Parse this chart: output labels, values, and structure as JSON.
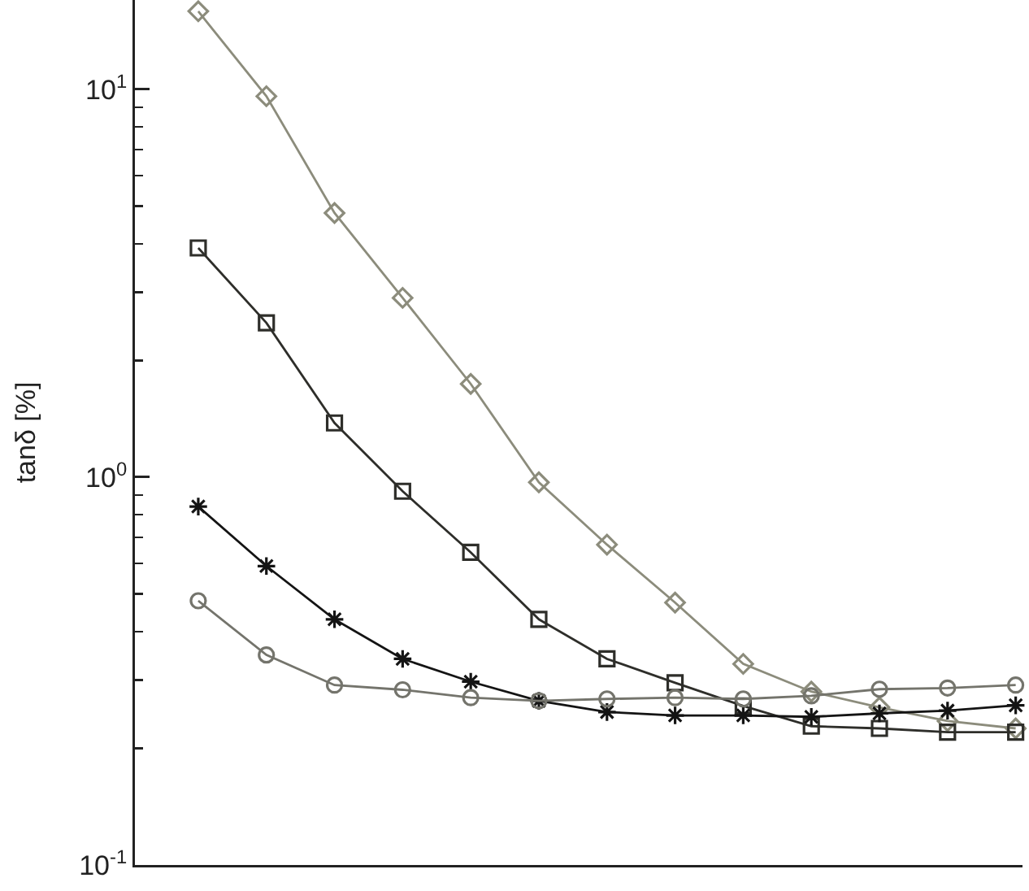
{
  "chart_data": {
    "type": "line",
    "ylabel": "tanδ [%]",
    "categories": [
      null,
      null,
      null,
      null,
      null,
      null,
      null,
      null,
      null,
      null,
      null,
      null,
      null
    ],
    "series": [
      {
        "color": "#8c8c7c",
        "marker": "diamond",
        "values": [
          15.9,
          9.6,
          4.8,
          2.9,
          1.74,
          0.97,
          0.67,
          0.475,
          0.33,
          0.28,
          0.255,
          0.235,
          0.225
        ]
      },
      {
        "color": "#2e2e2a",
        "marker": "square",
        "values": [
          3.9,
          2.5,
          1.38,
          0.92,
          0.64,
          0.43,
          0.34,
          0.295,
          0.257,
          0.228,
          0.225,
          0.22,
          0.22
        ]
      },
      {
        "color": "#141414",
        "marker": "cross",
        "values": [
          0.84,
          0.59,
          0.43,
          0.34,
          0.297,
          0.265,
          0.248,
          0.243,
          0.243,
          0.241,
          0.246,
          0.25,
          0.258
        ]
      },
      {
        "color": "#74746c",
        "marker": "circle",
        "values": [
          0.48,
          0.348,
          0.291,
          0.283,
          0.27,
          0.265,
          0.268,
          0.27,
          0.268,
          0.273,
          0.284,
          0.286,
          0.291
        ]
      }
    ],
    "ylim": [
      0.1,
      17
    ],
    "yticks": [
      {
        "value": 0.1,
        "label": "10$^{-1}$"
      },
      {
        "value": 0.2,
        "label": null
      },
      {
        "value": 0.3,
        "label": null
      },
      {
        "value": 0.4,
        "label": null
      },
      {
        "value": 0.5,
        "label": null
      },
      {
        "value": 0.6,
        "label": null
      },
      {
        "value": 0.7,
        "label": null
      },
      {
        "value": 0.8,
        "label": null
      },
      {
        "value": 0.9,
        "label": null
      },
      {
        "value": 1,
        "label": "10$^{0}$"
      },
      {
        "value": 2,
        "label": null
      },
      {
        "value": 3,
        "label": null
      },
      {
        "value": 4,
        "label": null
      },
      {
        "value": 5,
        "label": null
      },
      {
        "value": 6,
        "label": null
      },
      {
        "value": 7,
        "label": null
      },
      {
        "value": 8,
        "label": null
      },
      {
        "value": 9,
        "label": null
      },
      {
        "value": 10,
        "label": "10$^{1}$"
      }
    ],
    "log": true,
    "tick_labels": "y"
  }
}
